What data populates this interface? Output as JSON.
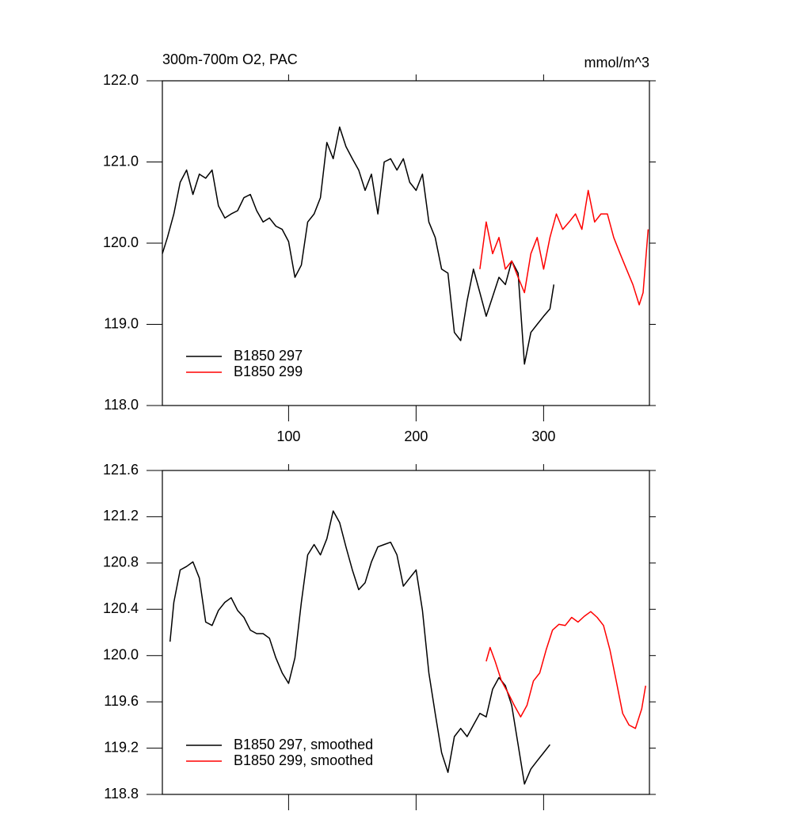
{
  "chart_data": [
    {
      "type": "line",
      "title": "300m-700m O2, PAC",
      "units": "mmol/m^3",
      "xlim": [
        1,
        383
      ],
      "xticks": [
        100,
        200,
        300
      ],
      "xtick_labels": true,
      "ylim": [
        118,
        122
      ],
      "yticks": [
        {
          "value": 118,
          "label": "118.0"
        },
        {
          "value": 119,
          "label": "119.0"
        },
        {
          "value": 120,
          "label": "120.0"
        },
        {
          "value": 121,
          "label": "121.0"
        },
        {
          "value": 122,
          "label": "122.0"
        }
      ],
      "legend": "lower left",
      "series": [
        {
          "name": "B1850 297",
          "color": "#000000",
          "x": [
            1,
            5,
            10,
            15,
            20,
            25,
            30,
            35,
            40,
            45,
            50,
            55,
            60,
            65,
            70,
            75,
            80,
            85,
            90,
            95,
            100,
            105,
            110,
            115,
            120,
            125,
            130,
            135,
            140,
            145,
            150,
            155,
            160,
            165,
            170,
            175,
            180,
            185,
            190,
            195,
            200,
            205,
            210,
            215,
            220,
            225,
            230,
            235,
            240,
            245,
            250,
            255,
            260,
            265,
            270,
            275,
            280,
            285,
            290,
            295,
            300,
            305,
            308
          ],
          "values": [
            119.87,
            120.07,
            120.36,
            120.75,
            120.9,
            120.6,
            120.85,
            120.8,
            120.9,
            120.46,
            120.31,
            120.36,
            120.4,
            120.56,
            120.6,
            120.4,
            120.26,
            120.31,
            120.21,
            120.17,
            120.02,
            119.58,
            119.73,
            120.26,
            120.36,
            120.56,
            121.24,
            121.04,
            121.43,
            121.19,
            121.04,
            120.9,
            120.65,
            120.85,
            120.36,
            121.0,
            121.04,
            120.9,
            121.04,
            120.75,
            120.65,
            120.85,
            120.26,
            120.07,
            119.68,
            119.63,
            118.9,
            118.8,
            119.29,
            119.68,
            119.39,
            119.1,
            119.34,
            119.58,
            119.49,
            119.78,
            119.63,
            118.51,
            118.9,
            119.0,
            119.1,
            119.19,
            119.49
          ]
        },
        {
          "name": "B1850 299",
          "color": "#ff0000",
          "x": [
            250,
            255,
            260,
            265,
            270,
            275,
            280,
            285,
            290,
            295,
            300,
            305,
            310,
            315,
            320,
            325,
            330,
            335,
            340,
            345,
            350,
            355,
            360,
            365,
            370,
            375,
            378,
            382
          ],
          "values": [
            119.68,
            120.26,
            119.87,
            120.07,
            119.68,
            119.78,
            119.58,
            119.39,
            119.87,
            120.07,
            119.68,
            120.07,
            120.36,
            120.17,
            120.26,
            120.36,
            120.17,
            120.65,
            120.26,
            120.36,
            120.36,
            120.07,
            119.87,
            119.68,
            119.49,
            119.24,
            119.39,
            120.17
          ]
        }
      ]
    },
    {
      "type": "line",
      "xlim": [
        1,
        383
      ],
      "xticks": [
        100,
        200,
        300
      ],
      "xtick_labels": false,
      "ylim": [
        118.8,
        121.6
      ],
      "yticks": [
        118.8,
        119.2,
        119.6,
        {
          "value": 120,
          "label": "120.0"
        },
        120.4,
        120.8,
        121.2,
        121.6
      ],
      "legend": "lower left",
      "series": [
        {
          "name": "B1850 297, smoothed",
          "color": "#000000",
          "x": [
            7,
            10,
            15,
            20,
            25,
            30,
            35,
            40,
            45,
            50,
            55,
            60,
            65,
            70,
            75,
            80,
            85,
            90,
            95,
            100,
            105,
            110,
            115,
            120,
            125,
            130,
            135,
            140,
            145,
            150,
            155,
            160,
            165,
            170,
            175,
            180,
            185,
            190,
            195,
            200,
            205,
            210,
            215,
            220,
            225,
            230,
            235,
            240,
            245,
            250,
            255,
            260,
            265,
            270,
            275,
            280,
            285,
            290,
            295,
            300,
            305
          ],
          "values": [
            120.12,
            120.46,
            120.74,
            120.77,
            120.81,
            120.67,
            120.29,
            120.26,
            120.39,
            120.46,
            120.5,
            120.39,
            120.33,
            120.22,
            120.19,
            120.19,
            120.15,
            119.98,
            119.85,
            119.76,
            119.98,
            120.46,
            120.87,
            120.96,
            120.87,
            121.01,
            121.25,
            121.15,
            120.94,
            120.74,
            120.57,
            120.63,
            120.81,
            120.94,
            120.96,
            120.98,
            120.87,
            120.6,
            120.67,
            120.74,
            120.39,
            119.85,
            119.5,
            119.16,
            118.99,
            119.3,
            119.37,
            119.3,
            119.4,
            119.5,
            119.47,
            119.71,
            119.81,
            119.74,
            119.57,
            119.23,
            118.89,
            119.02,
            119.09,
            119.16,
            119.23
          ]
        },
        {
          "name": "B1850 299, smoothed",
          "color": "#ff0000",
          "x": [
            255,
            258,
            262,
            267,
            272,
            277,
            282,
            287,
            292,
            297,
            302,
            307,
            312,
            317,
            322,
            327,
            332,
            337,
            342,
            347,
            352,
            357,
            362,
            367,
            372,
            377,
            380
          ],
          "values": [
            119.95,
            120.07,
            119.95,
            119.78,
            119.68,
            119.57,
            119.47,
            119.57,
            119.78,
            119.85,
            120.05,
            120.22,
            120.27,
            120.26,
            120.33,
            120.29,
            120.34,
            120.38,
            120.33,
            120.26,
            120.05,
            119.78,
            119.5,
            119.4,
            119.37,
            119.54,
            119.74
          ]
        }
      ]
    }
  ]
}
